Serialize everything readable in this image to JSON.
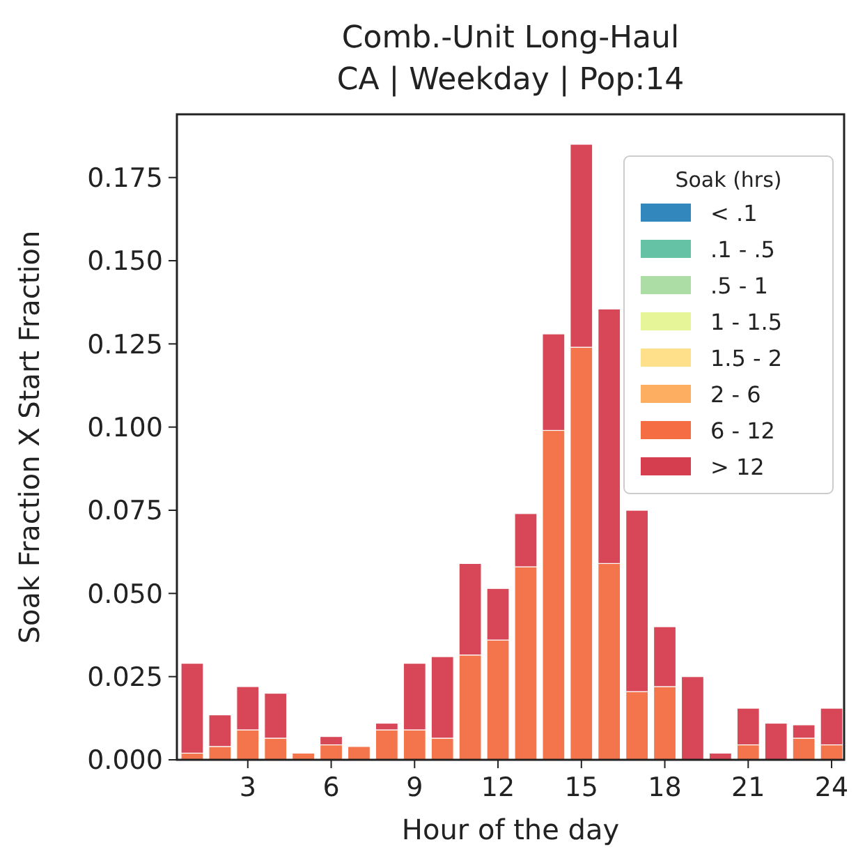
{
  "chart_data": {
    "type": "bar",
    "title": "Comb.-Unit Long-Haul",
    "subtitle": "CA | Weekday | Pop:14",
    "xlabel": "Hour of the day",
    "ylabel": "Soak Fraction X Start Fraction",
    "legend_title": "Soak (hrs)",
    "stacked": true,
    "legend": "top right",
    "grid": false,
    "x": [
      1,
      2,
      3,
      4,
      5,
      6,
      7,
      8,
      9,
      10,
      11,
      12,
      13,
      14,
      15,
      16,
      17,
      18,
      19,
      20,
      21,
      22,
      23,
      24
    ],
    "xlim": [
      0.45,
      24.45
    ],
    "xticks": [
      3,
      6,
      9,
      12,
      15,
      18,
      21,
      24
    ],
    "ylim": [
      0,
      0.194
    ],
    "yticks": [
      {
        "value": 0,
        "label": "0.000"
      },
      {
        "value": 0.025,
        "label": "0.025"
      },
      {
        "value": 0.05,
        "label": "0.050"
      },
      {
        "value": 0.075,
        "label": "0.075"
      },
      {
        "value": 0.1,
        "label": "0.100"
      },
      {
        "value": 0.125,
        "label": "0.125"
      },
      {
        "value": 0.15,
        "label": "0.150"
      },
      {
        "value": 0.175,
        "label": "0.175"
      }
    ],
    "series": [
      {
        "name": "< .1",
        "color": "#3288bd",
        "values": [
          0,
          0,
          0,
          0,
          0,
          0,
          0,
          0,
          0,
          0,
          0,
          0,
          0,
          0,
          0,
          0,
          0,
          0,
          0,
          0,
          0,
          0,
          0,
          0
        ]
      },
      {
        "name": ".1 - .5",
        "color": "#66c2a5",
        "values": [
          0,
          0,
          0,
          0,
          0,
          0,
          0,
          0,
          0,
          0,
          0,
          0,
          0,
          0,
          0,
          0,
          0,
          0,
          0,
          0,
          0,
          0,
          0,
          0
        ]
      },
      {
        "name": ".5 - 1",
        "color": "#abdda4",
        "values": [
          0,
          0,
          0,
          0,
          0,
          0,
          0,
          0,
          0,
          0,
          0,
          0,
          0,
          0,
          0,
          0,
          0,
          0,
          0,
          0,
          0,
          0,
          0,
          0
        ]
      },
      {
        "name": "1 - 1.5",
        "color": "#e6f598",
        "values": [
          0,
          0,
          0,
          0,
          0,
          0,
          0,
          0,
          0,
          0,
          0,
          0,
          0,
          0,
          0,
          0,
          0,
          0,
          0,
          0,
          0,
          0,
          0,
          0
        ]
      },
      {
        "name": "1.5 - 2",
        "color": "#fee08b",
        "values": [
          0,
          0,
          0,
          0,
          0,
          0,
          0,
          0,
          0,
          0,
          0,
          0,
          0,
          0,
          0,
          0,
          0,
          0,
          0,
          0,
          0,
          0,
          0,
          0
        ]
      },
      {
        "name": "2 - 6",
        "color": "#fdae61",
        "values": [
          0,
          0,
          0,
          0,
          0,
          0,
          0,
          0,
          0,
          0,
          0,
          0,
          0,
          0,
          0,
          0,
          0,
          0,
          0,
          0,
          0,
          0,
          0,
          0
        ]
      },
      {
        "name": "6 - 12",
        "color": "#f46d43",
        "values": [
          0.002,
          0.004,
          0.009,
          0.0065,
          0.002,
          0.0045,
          0.004,
          0.009,
          0.009,
          0.0065,
          0.0315,
          0.036,
          0.058,
          0.099,
          0.124,
          0.059,
          0.0205,
          0.022,
          0,
          0,
          0.0045,
          0,
          0.0065,
          0.0045
        ]
      },
      {
        "name": "> 12",
        "color": "#d53e4f",
        "values": [
          0.027,
          0.0095,
          0.013,
          0.0135,
          0,
          0.0025,
          0,
          0.002,
          0.02,
          0.0245,
          0.0275,
          0.0155,
          0.016,
          0.029,
          0.061,
          0.0765,
          0.0545,
          0.018,
          0.025,
          0.002,
          0.011,
          0.011,
          0.004,
          0.011
        ]
      }
    ]
  }
}
